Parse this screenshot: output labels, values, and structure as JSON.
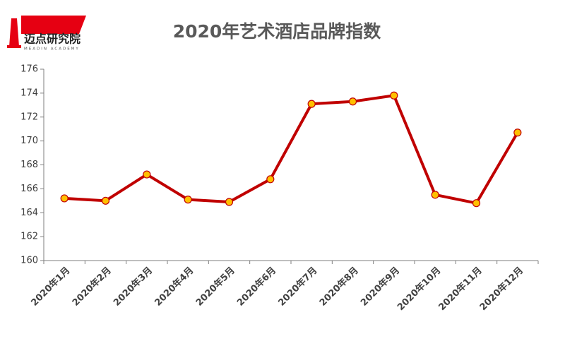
{
  "logo": {
    "name": "迈点研究院",
    "subtitle": "MEADIN ACADEMY"
  },
  "chart_data": {
    "type": "line",
    "title": "2020年艺术酒店品牌指数",
    "categories": [
      "2020年1月",
      "2020年2月",
      "2020年3月",
      "2020年4月",
      "2020年5月",
      "2020年6月",
      "2020年7月",
      "2020年8月",
      "2020年9月",
      "2020年10月",
      "2020年11月",
      "2020年12月"
    ],
    "values": [
      165.2,
      165.0,
      167.2,
      165.1,
      164.9,
      166.8,
      173.1,
      173.3,
      173.8,
      165.5,
      164.8,
      170.7
    ],
    "color": "#c00000",
    "marker_color": "#ffc000",
    "ylim": [
      160,
      176
    ],
    "yticks": [
      160,
      162,
      164,
      166,
      168,
      170,
      172,
      174,
      176
    ],
    "grid": false
  }
}
